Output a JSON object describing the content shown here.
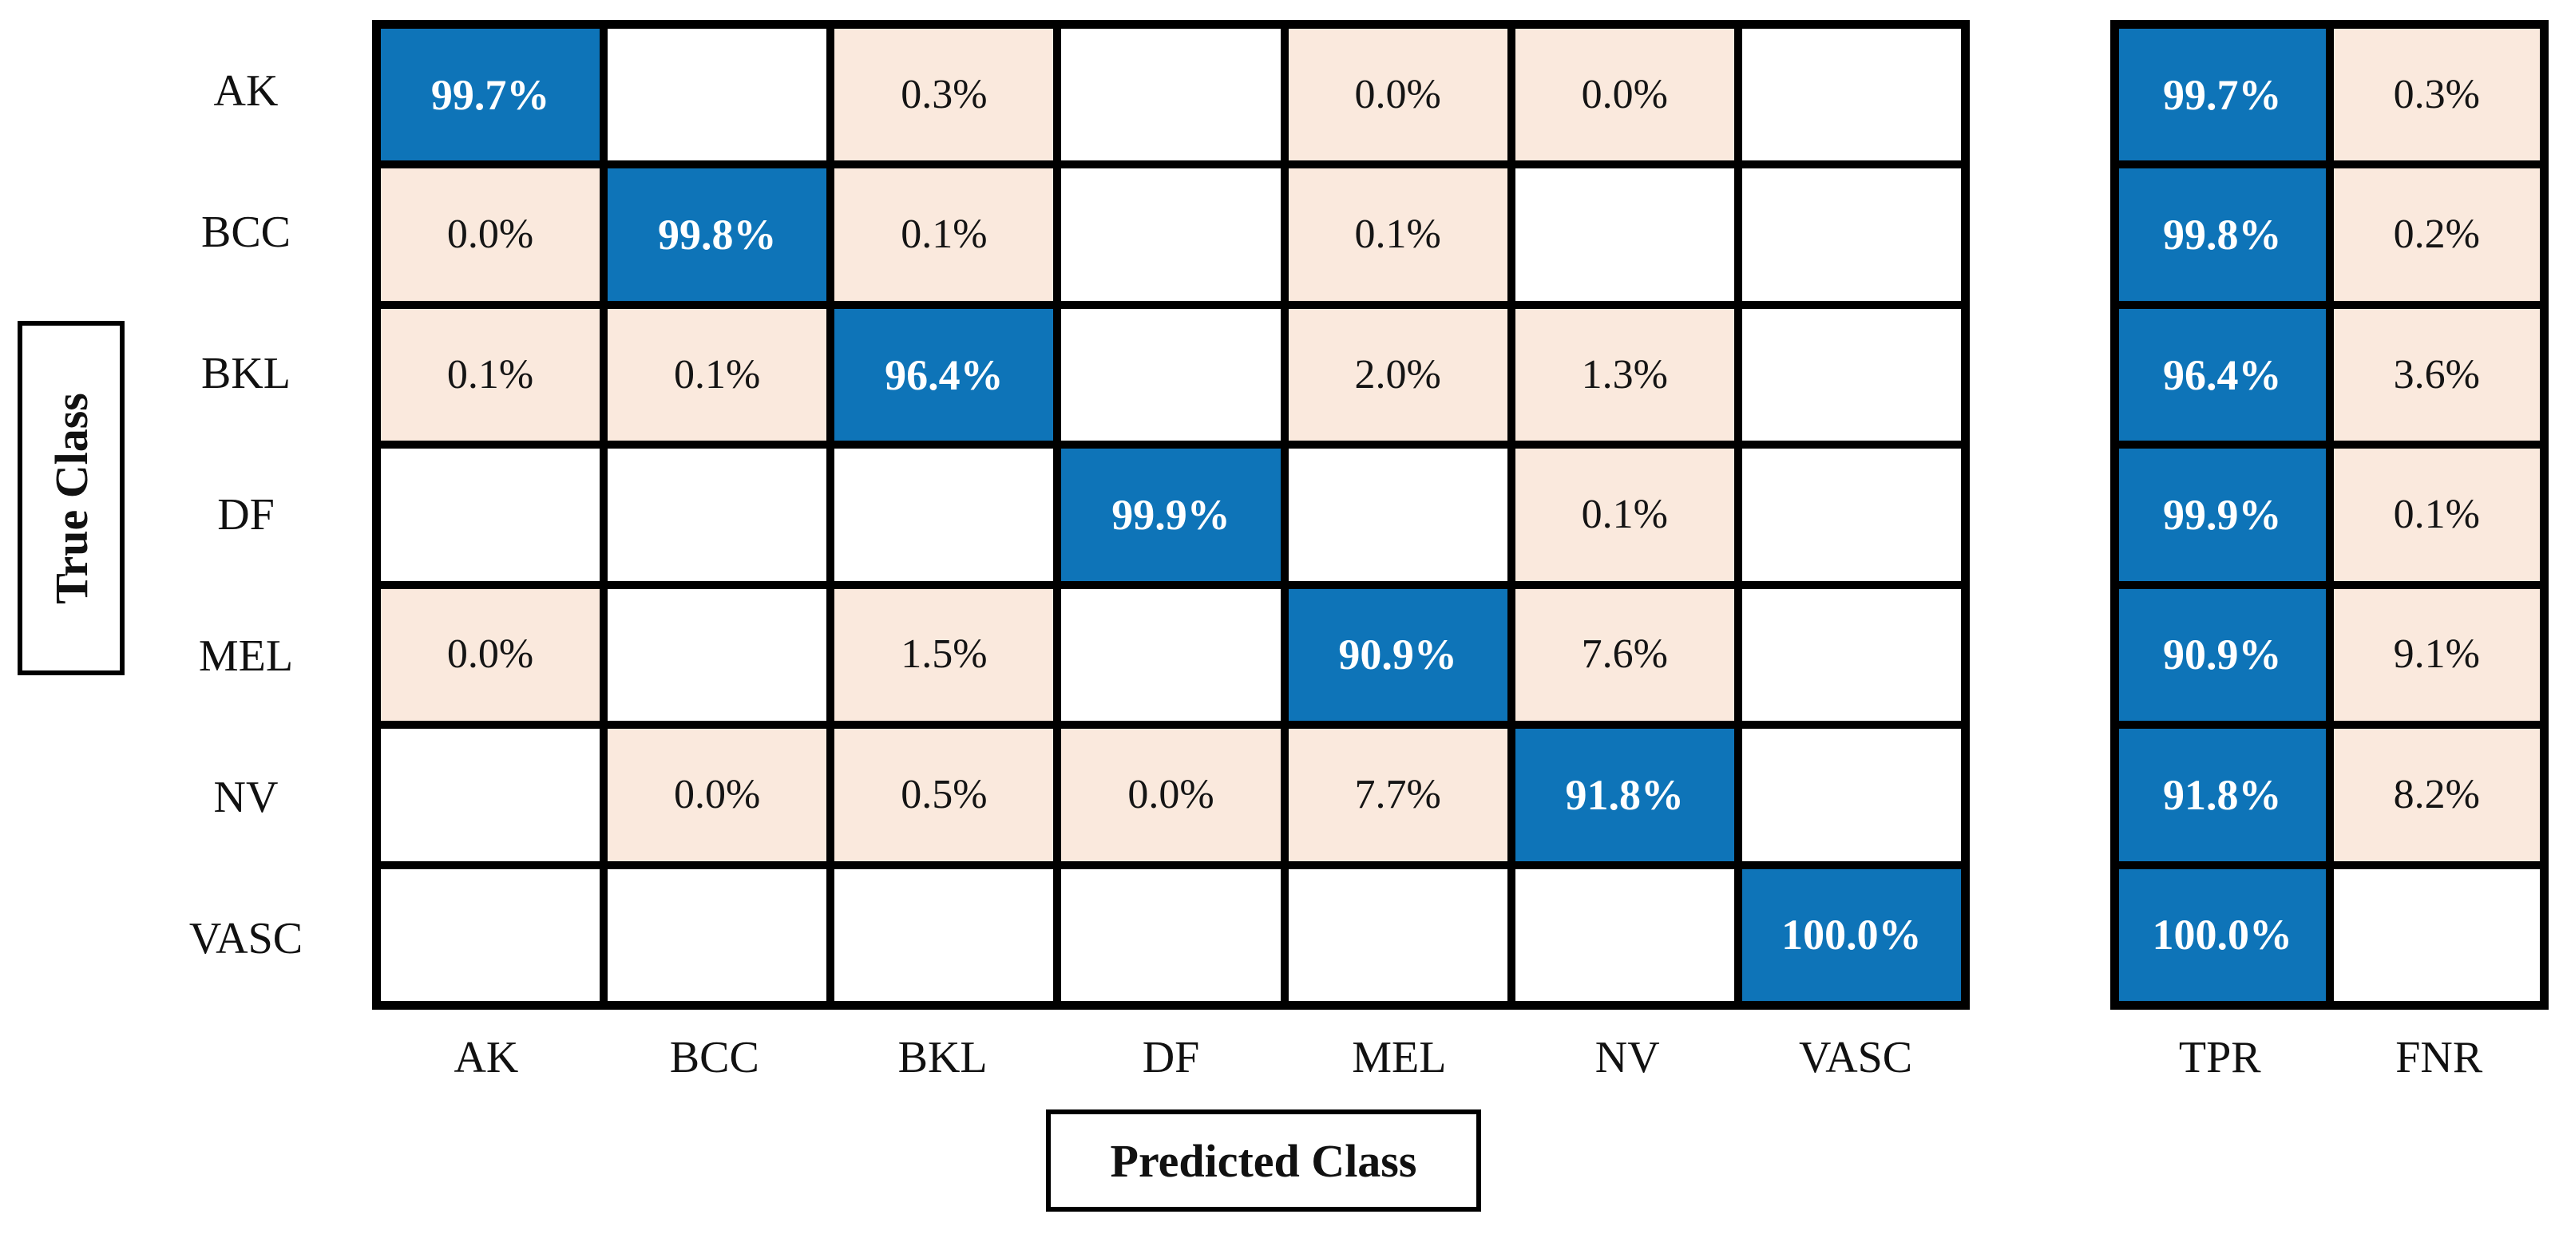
{
  "figure": {
    "kind": "confusion-matrix-figure",
    "colors": {
      "diagonal_bg": "#0e74b8",
      "off_diagonal_bg": "#fae9dd",
      "empty_bg": "#ffffff",
      "grid_line": "#000000",
      "diagonal_text": "#ffffff",
      "off_diagonal_text": "#141414"
    }
  },
  "axes": {
    "y_title": "True Class",
    "x_title": "Predicted Class"
  },
  "classes": [
    "AK",
    "BCC",
    "BKL",
    "DF",
    "MEL",
    "NV",
    "VASC"
  ],
  "matrix": {
    "values": [
      [
        "99.7%",
        null,
        "0.3%",
        null,
        "0.0%",
        "0.0%",
        null
      ],
      [
        "0.0%",
        "99.8%",
        "0.1%",
        null,
        "0.1%",
        null,
        null
      ],
      [
        "0.1%",
        "0.1%",
        "96.4%",
        null,
        "2.0%",
        "1.3%",
        null
      ],
      [
        null,
        null,
        null,
        "99.9%",
        null,
        "0.1%",
        null
      ],
      [
        "0.0%",
        null,
        "1.5%",
        null,
        "90.9%",
        "7.6%",
        null
      ],
      [
        null,
        "0.0%",
        "0.5%",
        "0.0%",
        "7.7%",
        "91.8%",
        null
      ],
      [
        null,
        null,
        null,
        null,
        null,
        null,
        "100.0%"
      ]
    ]
  },
  "summary": {
    "col_labels": [
      "TPR",
      "FNR"
    ],
    "values": [
      [
        "99.7%",
        "0.3%"
      ],
      [
        "99.8%",
        "0.2%"
      ],
      [
        "96.4%",
        "3.6%"
      ],
      [
        "99.9%",
        "0.1%"
      ],
      [
        "90.9%",
        "9.1%"
      ],
      [
        "91.8%",
        "8.2%"
      ],
      [
        "100.0%",
        null
      ]
    ]
  },
  "chart_data": {
    "type": "heatmap",
    "title": "",
    "xlabel": "Predicted Class",
    "ylabel": "True Class",
    "x_categories": [
      "AK",
      "BCC",
      "BKL",
      "DF",
      "MEL",
      "NV",
      "VASC"
    ],
    "y_categories": [
      "AK",
      "BCC",
      "BKL",
      "DF",
      "MEL",
      "NV",
      "VASC"
    ],
    "values_percent": [
      [
        99.7,
        null,
        0.3,
        null,
        0.0,
        0.0,
        null
      ],
      [
        0.0,
        99.8,
        0.1,
        null,
        0.1,
        null,
        null
      ],
      [
        0.1,
        0.1,
        96.4,
        null,
        2.0,
        1.3,
        null
      ],
      [
        null,
        null,
        null,
        99.9,
        null,
        0.1,
        null
      ],
      [
        0.0,
        null,
        1.5,
        null,
        90.9,
        7.6,
        null
      ],
      [
        null,
        0.0,
        0.5,
        0.0,
        7.7,
        91.8,
        null
      ],
      [
        null,
        null,
        null,
        null,
        null,
        null,
        100.0
      ]
    ],
    "series": [
      {
        "name": "TPR",
        "values": [
          99.7,
          99.8,
          96.4,
          99.9,
          90.9,
          91.8,
          100.0
        ]
      },
      {
        "name": "FNR",
        "values": [
          0.3,
          0.2,
          3.6,
          0.1,
          9.1,
          8.2,
          null
        ]
      }
    ],
    "legend_position": "none",
    "grid": true,
    "value_range": [
      0,
      100
    ]
  }
}
